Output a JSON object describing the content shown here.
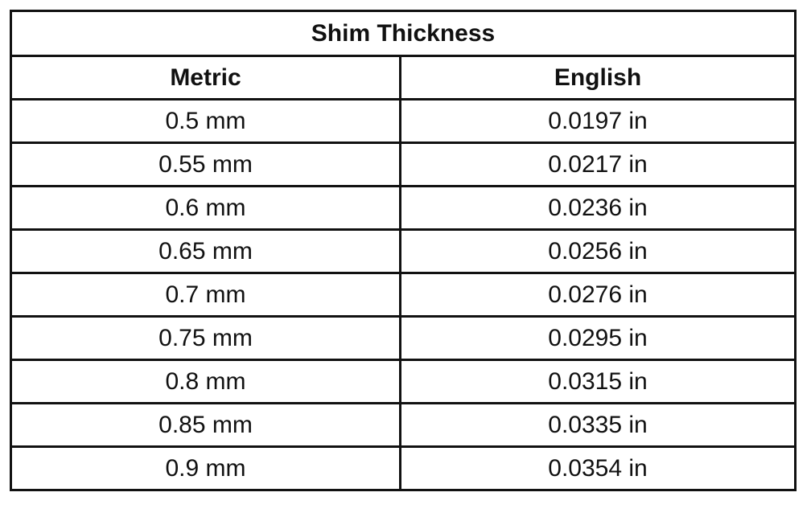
{
  "table": {
    "title": "Shim Thickness",
    "headers": {
      "metric": "Metric",
      "english": "English"
    },
    "rows": [
      {
        "metric": "0.5 mm",
        "english": "0.0197 in"
      },
      {
        "metric": "0.55 mm",
        "english": "0.0217 in"
      },
      {
        "metric": "0.6 mm",
        "english": "0.0236 in"
      },
      {
        "metric": "0.65 mm",
        "english": "0.0256 in"
      },
      {
        "metric": "0.7 mm",
        "english": "0.0276 in"
      },
      {
        "metric": "0.75 mm",
        "english": "0.0295 in"
      },
      {
        "metric": "0.8 mm",
        "english": "0.0315 in"
      },
      {
        "metric": "0.85 mm",
        "english": "0.0335 in"
      },
      {
        "metric": "0.9 mm",
        "english": "0.0354 in"
      }
    ]
  }
}
